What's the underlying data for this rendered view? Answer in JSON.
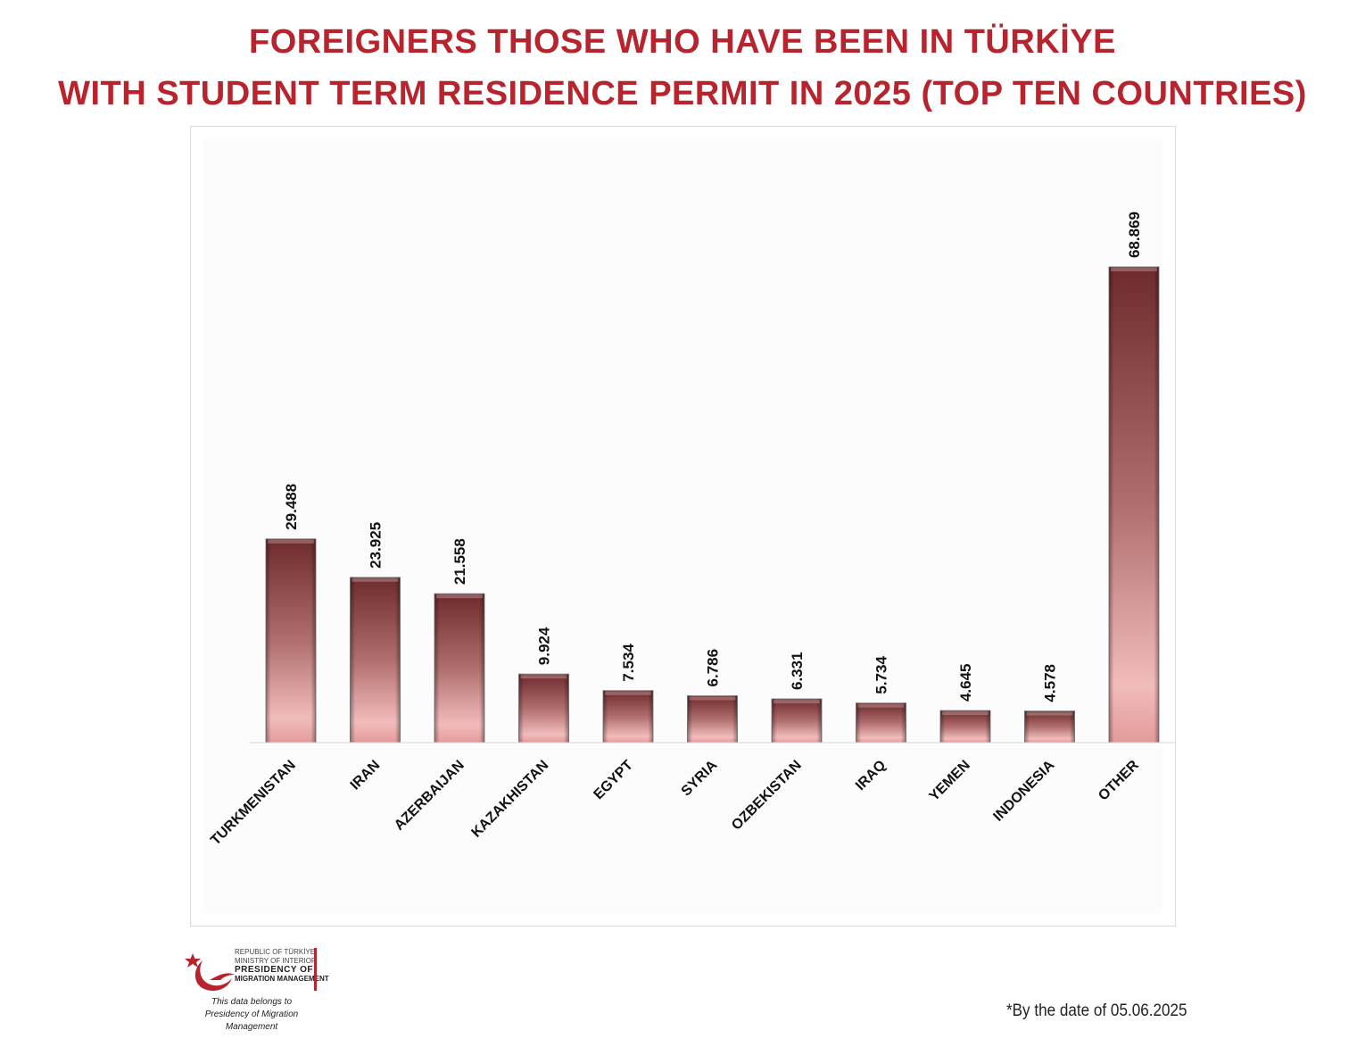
{
  "header": {
    "title_line1": "FOREIGNERS THOSE WHO HAVE BEEN IN TÜRKİYE",
    "title_line2": "WITH STUDENT TERM RESIDENCE PERMIT IN 2025 (TOP TEN COUNTRIES)"
  },
  "chart_data": {
    "type": "bar",
    "title": "FOREIGNERS THOSE WHO HAVE BEEN IN TÜRKİYE WITH STUDENT TERM RESIDENCE PERMIT IN 2025 (TOP TEN COUNTRIES)",
    "categories": [
      "TURKMENISTAN",
      "IRAN",
      "AZERBAIJAN",
      "KAZAKHISTAN",
      "EGYPT",
      "SYRIA",
      "OZBEKISTAN",
      "IRAQ",
      "YEMEN",
      "INDONESIA",
      "OTHER"
    ],
    "values": [
      29488,
      23925,
      21558,
      9924,
      7534,
      6786,
      6331,
      5734,
      4645,
      4578,
      68869
    ],
    "data_labels": [
      "29.488",
      "23.925",
      "21.558",
      "9.924",
      "7.534",
      "6.786",
      "6.331",
      "5.734",
      "4.645",
      "4.578",
      "68.869"
    ],
    "xlabel": "",
    "ylabel": "",
    "ylim": [
      0,
      80000
    ],
    "grid": false,
    "legend": "none",
    "colors": {
      "bar_dark": "#6e2a2c",
      "bar_light": "#f2bcbc",
      "bar_bottom": "#e39a9a",
      "title": "#b8242e"
    }
  },
  "logo": {
    "line1": "REPUBLIC OF TÜRKİYE",
    "line2": "MINISTRY OF INTERIOR",
    "line3": "PRESIDENCY OF",
    "line4": "MIGRATION MANAGEMENT",
    "caption1": "This data belongs to",
    "caption2": "Presidency of Migration Management"
  },
  "footer": {
    "note": "*By the date of  05.06.2025"
  }
}
